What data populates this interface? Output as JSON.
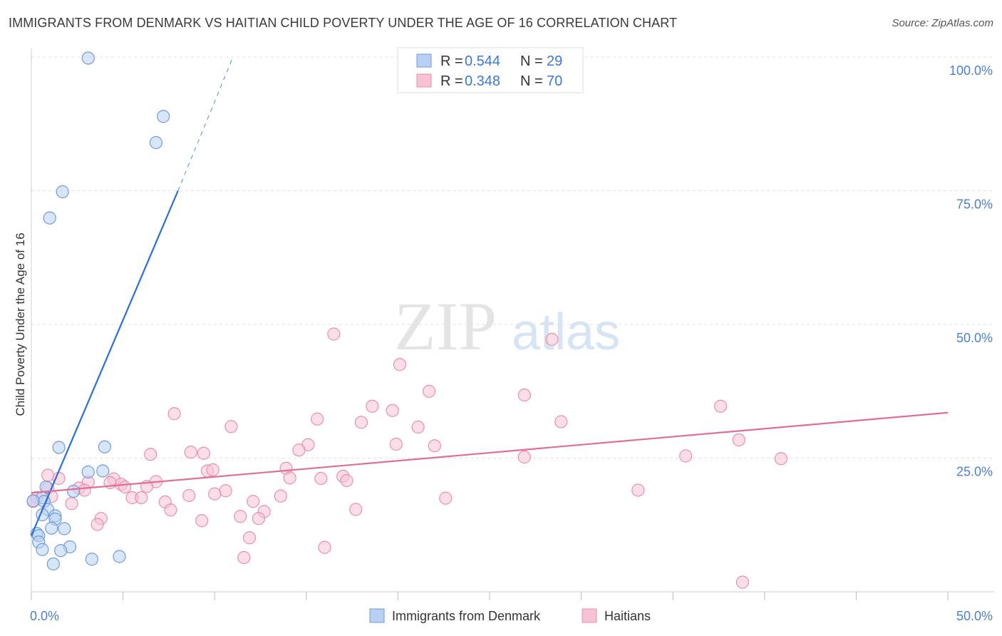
{
  "header": {
    "title": "IMMIGRANTS FROM DENMARK VS HAITIAN CHILD POVERTY UNDER THE AGE OF 16 CORRELATION CHART",
    "source": "Source: ZipAtlas.com"
  },
  "watermark": {
    "zip": "ZIP",
    "atlas": "atlas"
  },
  "colors": {
    "blue_fill": "#b8d1f3",
    "blue_stroke": "#6d9be0",
    "blue_line": "#2b6fd1",
    "pink_fill": "#f7c3d3",
    "pink_stroke": "#e98fac",
    "pink_line": "#e06f98",
    "axis_tick": "#4a7fd4",
    "grid": "#e2e2e2"
  },
  "legend": {
    "r_label": "R =",
    "n_label": "N =",
    "rows": [
      {
        "r": "0.544",
        "n": "29"
      },
      {
        "r": "0.348",
        "n": "70"
      }
    ]
  },
  "chart_data": {
    "type": "scatter",
    "title": "IMMIGRANTS FROM DENMARK VS HAITIAN CHILD POVERTY UNDER THE AGE OF 16 CORRELATION CHART",
    "xlabel": "",
    "ylabel": "Child Poverty Under the Age of 16",
    "xlim": [
      0,
      50
    ],
    "ylim": [
      0,
      100
    ],
    "x_tick_labels": [
      "0.0%",
      "50.0%"
    ],
    "y_tick_labels": [
      "25.0%",
      "50.0%",
      "75.0%",
      "100.0%"
    ],
    "y_ticks": [
      25,
      50,
      75,
      100
    ],
    "series": [
      {
        "name": "Immigrants from Denmark",
        "points": [
          [
            3.1,
            99.8
          ],
          [
            7.2,
            88.9
          ],
          [
            6.8,
            84.0
          ],
          [
            1.7,
            74.8
          ],
          [
            1.0,
            69.9
          ],
          [
            1.5,
            27.0
          ],
          [
            4.0,
            27.1
          ],
          [
            3.1,
            22.4
          ],
          [
            3.9,
            22.6
          ],
          [
            0.8,
            19.6
          ],
          [
            2.3,
            18.8
          ],
          [
            0.6,
            17.6
          ],
          [
            0.7,
            16.9
          ],
          [
            0.9,
            15.4
          ],
          [
            0.6,
            14.4
          ],
          [
            1.3,
            14.2
          ],
          [
            1.3,
            13.6
          ],
          [
            1.1,
            11.9
          ],
          [
            1.8,
            11.8
          ],
          [
            0.3,
            10.9
          ],
          [
            0.4,
            10.5
          ],
          [
            0.4,
            9.3
          ],
          [
            2.1,
            8.4
          ],
          [
            0.6,
            7.9
          ],
          [
            1.6,
            7.7
          ],
          [
            4.8,
            6.6
          ],
          [
            3.3,
            6.1
          ],
          [
            1.2,
            5.2
          ],
          [
            0.1,
            17.0
          ]
        ],
        "trend": {
          "x": [
            0.0,
            8.0
          ],
          "y": [
            10.5,
            75.0
          ],
          "extended_x": [
            8.0,
            11.0
          ],
          "extended_y": [
            75.0,
            100.0
          ]
        }
      },
      {
        "name": "Haitians",
        "points": [
          [
            16.5,
            48.2
          ],
          [
            28.4,
            47.2
          ],
          [
            20.1,
            42.5
          ],
          [
            21.7,
            37.5
          ],
          [
            26.9,
            36.8
          ],
          [
            18.6,
            34.7
          ],
          [
            37.6,
            34.7
          ],
          [
            19.7,
            33.9
          ],
          [
            7.8,
            33.3
          ],
          [
            15.6,
            32.3
          ],
          [
            18.0,
            31.7
          ],
          [
            28.9,
            31.8
          ],
          [
            10.9,
            30.9
          ],
          [
            21.1,
            30.8
          ],
          [
            38.6,
            28.4
          ],
          [
            15.1,
            27.5
          ],
          [
            19.9,
            27.6
          ],
          [
            22.0,
            27.3
          ],
          [
            14.6,
            26.5
          ],
          [
            8.7,
            26.1
          ],
          [
            9.4,
            25.9
          ],
          [
            6.5,
            25.7
          ],
          [
            35.7,
            25.4
          ],
          [
            26.9,
            25.2
          ],
          [
            40.9,
            24.9
          ],
          [
            13.9,
            23.1
          ],
          [
            9.6,
            22.6
          ],
          [
            9.9,
            22.8
          ],
          [
            17.0,
            21.6
          ],
          [
            0.9,
            21.8
          ],
          [
            1.5,
            21.2
          ],
          [
            4.5,
            21.1
          ],
          [
            14.1,
            21.3
          ],
          [
            15.8,
            21.2
          ],
          [
            17.2,
            20.8
          ],
          [
            6.8,
            20.6
          ],
          [
            3.1,
            20.5
          ],
          [
            4.3,
            20.4
          ],
          [
            4.9,
            20.1
          ],
          [
            5.1,
            19.6
          ],
          [
            6.3,
            19.7
          ],
          [
            2.6,
            19.4
          ],
          [
            0.9,
            19.4
          ],
          [
            2.9,
            19.0
          ],
          [
            10.6,
            18.9
          ],
          [
            10.0,
            18.3
          ],
          [
            33.1,
            19.0
          ],
          [
            8.6,
            18.0
          ],
          [
            13.6,
            17.9
          ],
          [
            1.1,
            17.8
          ],
          [
            5.5,
            17.6
          ],
          [
            6.0,
            17.6
          ],
          [
            22.6,
            17.5
          ],
          [
            0.3,
            17.6
          ],
          [
            7.3,
            16.8
          ],
          [
            12.1,
            16.9
          ],
          [
            2.2,
            16.5
          ],
          [
            0.1,
            16.9
          ],
          [
            7.6,
            15.3
          ],
          [
            12.7,
            15.0
          ],
          [
            17.7,
            15.4
          ],
          [
            11.4,
            14.1
          ],
          [
            12.4,
            13.7
          ],
          [
            3.8,
            13.7
          ],
          [
            9.3,
            13.3
          ],
          [
            3.6,
            12.6
          ],
          [
            11.9,
            10.1
          ],
          [
            16.0,
            8.3
          ],
          [
            11.6,
            6.4
          ],
          [
            38.8,
            1.8
          ]
        ],
        "trend": {
          "x": [
            0.0,
            50.0
          ],
          "y": [
            18.5,
            33.5
          ]
        }
      }
    ]
  },
  "bottom_legend": {
    "items": [
      {
        "label": "Immigrants from Denmark"
      },
      {
        "label": "Haitians"
      }
    ]
  }
}
